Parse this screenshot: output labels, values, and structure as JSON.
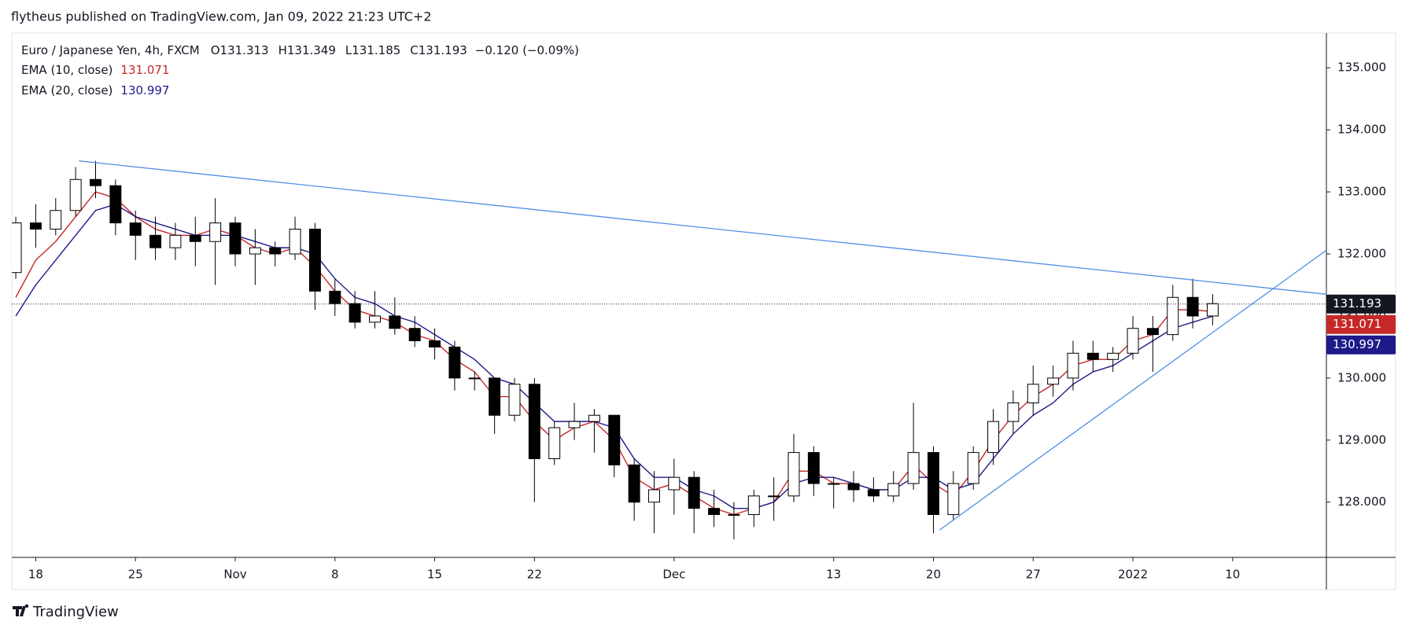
{
  "header": {
    "text": "flytheus published on TradingView.com, Jan 09, 2022 21:23 UTC+2"
  },
  "footer": {
    "brand": "TradingView"
  },
  "chart_data": {
    "type": "candlestick",
    "title": "Euro / Japanese Yen, 4h, FXCM",
    "ohlc": [
      {
        "label": "O",
        "value": 131.313
      },
      {
        "label": "H",
        "value": 131.349
      },
      {
        "label": "L",
        "value": 131.185
      },
      {
        "label": "C",
        "value": 131.193
      }
    ],
    "change": "−0.120 (−0.09%)",
    "x": [
      -1,
      0,
      1,
      2,
      3,
      4,
      5,
      6,
      7,
      8,
      9,
      10,
      11,
      12,
      13,
      14,
      15,
      16,
      17,
      18,
      19,
      20,
      21,
      22,
      23,
      24,
      25,
      26,
      27,
      28,
      29,
      30,
      31,
      32,
      33,
      34,
      35,
      36,
      37,
      38,
      39,
      40,
      41,
      42,
      43,
      44,
      45,
      46,
      47,
      48,
      49,
      50,
      51,
      52,
      53,
      54,
      55,
      56,
      57,
      58,
      59
    ],
    "open": [
      131.7,
      132.5,
      132.4,
      132.7,
      133.2,
      133.1,
      132.5,
      132.3,
      132.1,
      132.3,
      132.2,
      132.5,
      132.0,
      132.1,
      132.0,
      132.4,
      131.4,
      131.2,
      130.9,
      131.0,
      130.8,
      130.6,
      130.5,
      130.0,
      130.0,
      129.4,
      129.9,
      128.7,
      129.2,
      129.3,
      129.4,
      128.6,
      128.0,
      128.2,
      128.4,
      127.9,
      127.8,
      127.8,
      128.1,
      128.1,
      128.8,
      128.3,
      128.3,
      128.2,
      128.1,
      128.3,
      128.8,
      127.8,
      128.3,
      128.8,
      129.3,
      129.6,
      129.9,
      130.0,
      130.4,
      130.3,
      130.4,
      130.8,
      130.7,
      131.3,
      131.0
    ],
    "high": [
      132.6,
      132.8,
      132.9,
      133.4,
      133.5,
      133.2,
      132.7,
      132.6,
      132.5,
      132.6,
      132.9,
      132.6,
      132.4,
      132.2,
      132.6,
      132.5,
      131.6,
      131.4,
      131.4,
      131.3,
      131.0,
      130.8,
      130.6,
      130.1,
      130.0,
      130.0,
      130.0,
      129.3,
      129.6,
      129.5,
      129.4,
      128.7,
      128.5,
      128.7,
      128.5,
      128.2,
      128.0,
      128.2,
      128.4,
      129.1,
      128.9,
      128.4,
      128.5,
      128.4,
      128.5,
      129.6,
      128.9,
      128.5,
      128.9,
      129.5,
      129.8,
      130.2,
      130.2,
      130.6,
      130.6,
      130.5,
      131.0,
      131.0,
      131.5,
      131.6,
      131.35
    ],
    "low": [
      131.6,
      132.1,
      132.3,
      132.6,
      132.9,
      132.3,
      131.9,
      131.9,
      131.9,
      131.8,
      131.5,
      131.8,
      131.5,
      131.8,
      131.9,
      131.1,
      131.0,
      130.8,
      130.8,
      130.7,
      130.5,
      130.3,
      129.8,
      129.8,
      129.1,
      129.3,
      128.0,
      128.6,
      129.0,
      128.8,
      128.4,
      127.7,
      127.5,
      127.8,
      127.5,
      127.6,
      127.4,
      127.6,
      127.7,
      128.0,
      128.1,
      127.9,
      128.0,
      128.0,
      128.0,
      128.2,
      127.5,
      127.7,
      128.2,
      128.6,
      129.1,
      129.4,
      129.7,
      129.8,
      130.1,
      130.1,
      130.3,
      130.1,
      130.6,
      130.8,
      130.85
    ],
    "close": [
      132.5,
      132.4,
      132.7,
      133.2,
      133.1,
      132.5,
      132.3,
      132.1,
      132.3,
      132.2,
      132.5,
      132.0,
      132.1,
      132.0,
      132.4,
      131.4,
      131.2,
      130.9,
      131.0,
      130.8,
      130.6,
      130.5,
      130.0,
      130.0,
      129.4,
      129.9,
      128.7,
      129.2,
      129.3,
      129.4,
      128.6,
      128.0,
      128.2,
      128.4,
      127.9,
      127.8,
      127.8,
      128.1,
      128.1,
      128.8,
      128.3,
      128.3,
      128.2,
      128.1,
      128.3,
      128.8,
      127.8,
      128.3,
      128.8,
      129.3,
      129.6,
      129.9,
      130.0,
      130.4,
      130.3,
      130.4,
      130.8,
      130.7,
      131.3,
      131.0,
      131.2
    ],
    "up_color": "#ffffff",
    "down_color": "#000000",
    "series": [
      {
        "name": "EMA (10, close)",
        "color": "#c62828",
        "values": [
          131.3,
          131.9,
          132.2,
          132.6,
          133.0,
          132.9,
          132.6,
          132.4,
          132.3,
          132.3,
          132.4,
          132.3,
          132.1,
          132.0,
          132.1,
          131.8,
          131.4,
          131.1,
          131.0,
          130.9,
          130.7,
          130.6,
          130.3,
          130.1,
          129.7,
          129.7,
          129.3,
          129.0,
          129.2,
          129.3,
          129.0,
          128.4,
          128.2,
          128.3,
          128.1,
          127.9,
          127.8,
          127.9,
          128.0,
          128.5,
          128.5,
          128.3,
          128.3,
          128.2,
          128.2,
          128.6,
          128.3,
          128.1,
          128.5,
          129.0,
          129.4,
          129.7,
          129.9,
          130.2,
          130.3,
          130.3,
          130.6,
          130.7,
          131.1,
          131.1,
          131.071
        ]
      },
      {
        "name": "EMA (20, close)",
        "color": "#1e1a8a",
        "values": [
          131.0,
          131.5,
          131.9,
          132.3,
          132.7,
          132.8,
          132.6,
          132.5,
          132.4,
          132.3,
          132.3,
          132.3,
          132.2,
          132.1,
          132.1,
          132.0,
          131.6,
          131.3,
          131.2,
          131.0,
          130.9,
          130.7,
          130.5,
          130.3,
          130.0,
          129.9,
          129.6,
          129.3,
          129.3,
          129.3,
          129.2,
          128.7,
          128.4,
          128.4,
          128.2,
          128.1,
          127.9,
          127.9,
          128.0,
          128.3,
          128.4,
          128.4,
          128.3,
          128.2,
          128.2,
          128.4,
          128.4,
          128.2,
          128.3,
          128.7,
          129.1,
          129.4,
          129.6,
          129.9,
          130.1,
          130.2,
          130.4,
          130.6,
          130.8,
          130.9,
          130.997
        ]
      }
    ],
    "trendlines": [
      {
        "color": "#4d8fe6",
        "x": [
          2.16,
          64.7
        ],
        "y": [
          133.5,
          131.35
        ]
      },
      {
        "color": "#4d8fe6",
        "x": [
          45.3,
          64.7
        ],
        "y": [
          127.55,
          132.06
        ]
      }
    ],
    "xlim": [
      -1.2,
      64.7
    ],
    "xticks": [
      {
        "value": 0,
        "label": "18"
      },
      {
        "value": 5,
        "label": "25"
      },
      {
        "value": 10,
        "label": "Nov"
      },
      {
        "value": 15,
        "label": "8"
      },
      {
        "value": 20,
        "label": "15"
      },
      {
        "value": 25,
        "label": "22"
      },
      {
        "value": 32,
        "label": "Dec"
      },
      {
        "value": 40,
        "label": "13"
      },
      {
        "value": 45,
        "label": "20"
      },
      {
        "value": 50,
        "label": "27"
      },
      {
        "value": 55,
        "label": "2022"
      },
      {
        "value": 60,
        "label": "10"
      }
    ],
    "ylim": [
      127.11,
      135.56
    ],
    "yticks": [
      {
        "value": 128,
        "label": "128.000"
      },
      {
        "value": 129,
        "label": "129.000"
      },
      {
        "value": 130,
        "label": "130.000"
      },
      {
        "value": 131,
        "label": "131.000"
      },
      {
        "value": 132,
        "label": "132.000"
      },
      {
        "value": 133,
        "label": "133.000"
      },
      {
        "value": 134,
        "label": "134.000"
      },
      {
        "value": 135,
        "label": "135.000"
      }
    ]
  }
}
